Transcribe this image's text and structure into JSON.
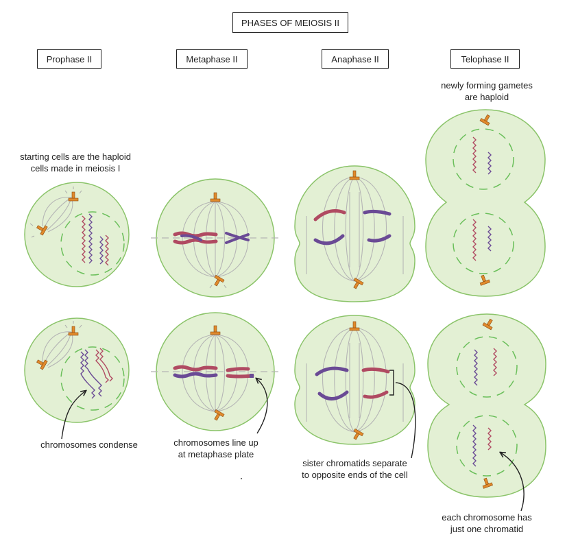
{
  "title": "PHASES OF MEIOSIS II",
  "phases": [
    "Prophase II",
    "Metaphase II",
    "Anaphase II",
    "Telophase II"
  ],
  "annotations": {
    "starting_cells": [
      "starting cells are the haploid",
      "cells made in meiosis I"
    ],
    "gametes": [
      "newly forming gametes",
      "are haploid"
    ],
    "condense": "chromosomes condense",
    "line_up": [
      "chromosomes line up",
      "at metaphase plate"
    ],
    "separate": [
      "sister chromatids separate",
      "to opposite ends of the cell"
    ],
    "one_chromatid": [
      "each chromosome has",
      "just one chromatid"
    ]
  },
  "colors": {
    "cell_fill": "#e3f0d4",
    "cell_stroke": "#8bc46a",
    "nuclear_envelope": "#6abf5a",
    "spindle": "#b5b5b5",
    "centrosome": "#e08a2c",
    "chromosome_red": "#b04a62",
    "chromosome_purple": "#6a4a95"
  }
}
